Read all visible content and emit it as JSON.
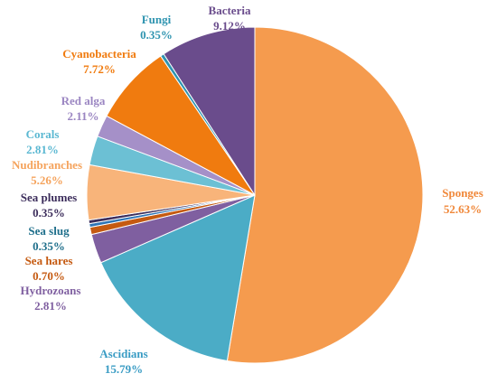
{
  "chart_data": {
    "type": "pie",
    "title": "",
    "legend": "none",
    "slices": [
      {
        "name": "Sponges",
        "value": 52.63,
        "label": "52.63%",
        "color": "#F59B4E",
        "label_color": "#F0883A"
      },
      {
        "name": "Ascidians",
        "value": 15.79,
        "label": "15.79%",
        "color": "#4BACC6",
        "label_color": "#3A9CC4"
      },
      {
        "name": "Hydrozoans",
        "value": 2.81,
        "label": "2.81%",
        "color": "#7F5FA0",
        "label_color": "#7F5FA0"
      },
      {
        "name": "Sea hares",
        "value": 0.7,
        "label": "0.70%",
        "color": "#C55A11",
        "label_color": "#C55A11"
      },
      {
        "name": "Sea slug",
        "value": 0.35,
        "label": "0.35%",
        "color": "#2E75B6",
        "label_color": "#1F6F8B"
      },
      {
        "name": "Sea plumes",
        "value": 0.35,
        "label": "0.35%",
        "color": "#3D2E5C",
        "label_color": "#3D2E5C"
      },
      {
        "name": "Nudibranches",
        "value": 5.26,
        "label": "5.26%",
        "color": "#F8B47A",
        "label_color": "#F5A35C"
      },
      {
        "name": "Corals",
        "value": 2.81,
        "label": "2.81%",
        "color": "#6CC0D4",
        "label_color": "#5BB8D2"
      },
      {
        "name": "Red alga",
        "value": 2.11,
        "label": "2.11%",
        "color": "#A590C8",
        "label_color": "#9B86C2"
      },
      {
        "name": "Cyanobacteria",
        "value": 7.72,
        "label": "7.72%",
        "color": "#F07B0F",
        "label_color": "#F07B0F"
      },
      {
        "name": "Fungi",
        "value": 0.35,
        "label": "0.35%",
        "color": "#2F94B0",
        "label_color": "#2F94B0"
      },
      {
        "name": "Bacteria",
        "value": 9.12,
        "label": "9.12%",
        "color": "#6A4C8C",
        "label_color": "#6A4C8C"
      }
    ]
  }
}
